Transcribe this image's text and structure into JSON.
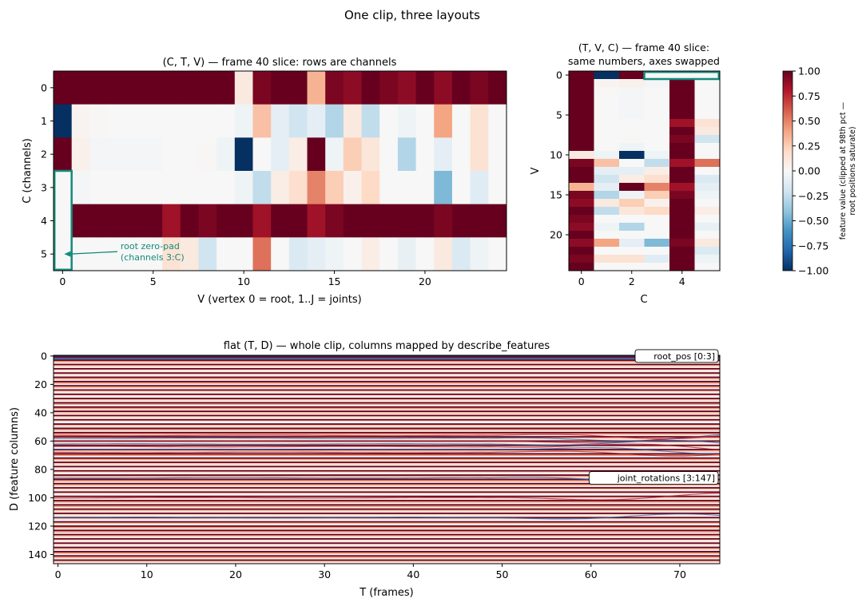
{
  "figure": {
    "suptitle": "One clip, three layouts"
  },
  "colors": {
    "highlight": "#138a7a",
    "colormap_low": "#053061",
    "colormap_mid": "#f7f7f7",
    "colormap_high": "#67001f"
  },
  "chart_data": [
    {
      "id": "ctv",
      "type": "heatmap",
      "title": "(C, T, V) — frame 40 slice: rows are channels",
      "xlabel": "V  (vertex 0 = root, 1..J = joints)",
      "ylabel": "C (channels)",
      "x_ticks": [
        "0",
        "5",
        "10",
        "15",
        "20"
      ],
      "y_ticks": [
        "0",
        "1",
        "2",
        "3",
        "4",
        "5"
      ],
      "xlim": [
        -0.5,
        24.5
      ],
      "ylim": [
        5.5,
        -0.5
      ],
      "vmin": -1,
      "vmax": 1,
      "rows": [
        [
          1.0,
          1.0,
          1.0,
          1.0,
          1.0,
          1.0,
          1.0,
          1.0,
          1.0,
          1.0,
          0.1,
          0.95,
          1.0,
          1.0,
          0.35,
          0.95,
          0.9,
          1.0,
          0.95,
          0.9,
          1.0,
          0.9,
          1.0,
          0.95,
          1.0
        ],
        [
          -1.0,
          0.03,
          0.01,
          0.0,
          0.0,
          0.0,
          0.0,
          0.0,
          0.0,
          0.0,
          -0.05,
          0.3,
          -0.1,
          -0.2,
          -0.1,
          -0.3,
          0.1,
          -0.25,
          0.0,
          -0.05,
          0.0,
          0.4,
          0.0,
          0.15,
          0.0
        ],
        [
          1.0,
          0.05,
          -0.02,
          -0.02,
          -0.02,
          -0.02,
          0.0,
          0.0,
          0.01,
          -0.05,
          -1.0,
          0.0,
          -0.1,
          0.07,
          1.0,
          -0.05,
          0.25,
          0.12,
          0.0,
          -0.3,
          0.0,
          -0.1,
          0.0,
          0.15,
          0.0
        ],
        [
          0.0,
          -0.02,
          0.0,
          0.0,
          0.0,
          0.0,
          0.0,
          0.0,
          0.0,
          0.0,
          -0.05,
          -0.25,
          0.07,
          0.17,
          0.5,
          0.25,
          0.05,
          0.2,
          0.0,
          0.0,
          0.0,
          -0.45,
          0.0,
          -0.12,
          0.0
        ],
        [
          0.0,
          1.0,
          1.0,
          1.0,
          1.0,
          1.0,
          0.85,
          1.0,
          0.95,
          1.0,
          1.0,
          0.85,
          1.0,
          1.0,
          0.85,
          0.95,
          1.0,
          1.0,
          1.0,
          1.0,
          1.0,
          0.95,
          1.0,
          1.0,
          1.0
        ],
        [
          0.0,
          0.0,
          0.0,
          0.0,
          0.0,
          0.0,
          0.15,
          0.1,
          -0.2,
          0.0,
          0.0,
          0.55,
          0.0,
          -0.15,
          -0.1,
          -0.05,
          0.0,
          0.07,
          0.0,
          -0.08,
          0.0,
          0.1,
          -0.15,
          -0.05,
          0.0
        ]
      ],
      "highlight_box": {
        "x": [
          -0.5,
          0.5
        ],
        "y": [
          2.5,
          5.5
        ]
      },
      "annotation": {
        "text_line1": "root zero-pad",
        "text_line2": "(channels 3:C)",
        "arrow_target": [
          0,
          5
        ],
        "text_pos": [
          3.2,
          5.0
        ]
      }
    },
    {
      "id": "tvc",
      "type": "heatmap",
      "title_line1": "(T, V, C) — frame 40 slice:",
      "title_line2": "same numbers, axes swapped",
      "xlabel": "C",
      "ylabel": "V",
      "x_ticks": [
        "0",
        "2",
        "4"
      ],
      "y_ticks": [
        "0",
        "5",
        "10",
        "15",
        "20"
      ],
      "xlim": [
        -0.5,
        5.5
      ],
      "ylim": [
        24.5,
        -0.5
      ],
      "vmin": -1,
      "vmax": 1,
      "highlight_box": {
        "x": [
          2.5,
          5.5
        ],
        "y": [
          -0.5,
          0.5
        ]
      }
    },
    {
      "id": "colorbar",
      "type": "colorbar",
      "label_line1": "feature value  (clipped at 98th pct —",
      "label_line2": "root positions saturate)",
      "ticks": [
        "1.00",
        "0.75",
        "0.50",
        "0.25",
        "0.00",
        "−0.25",
        "−0.50",
        "−0.75",
        "−1.00"
      ],
      "tick_values": [
        1.0,
        0.75,
        0.5,
        0.25,
        0.0,
        -0.25,
        -0.5,
        -0.75,
        -1.0
      ],
      "range": [
        -1,
        1
      ]
    },
    {
      "id": "flat",
      "type": "heatmap",
      "title": "flat (T, D) — whole clip, columns mapped by describe_features",
      "xlabel": "T (frames)",
      "ylabel": "D (feature columns)",
      "x_ticks": [
        "0",
        "10",
        "20",
        "30",
        "40",
        "50",
        "60",
        "70"
      ],
      "y_ticks": [
        "0",
        "20",
        "40",
        "60",
        "80",
        "100",
        "120",
        "140"
      ],
      "xlim": [
        -0.5,
        74.5
      ],
      "ylim": [
        146.5,
        -0.5
      ],
      "labels": [
        {
          "text": "root_pos  [0:3]",
          "row": 0
        },
        {
          "text": "joint_rotations  [3:147]",
          "row": 86
        }
      ]
    }
  ]
}
